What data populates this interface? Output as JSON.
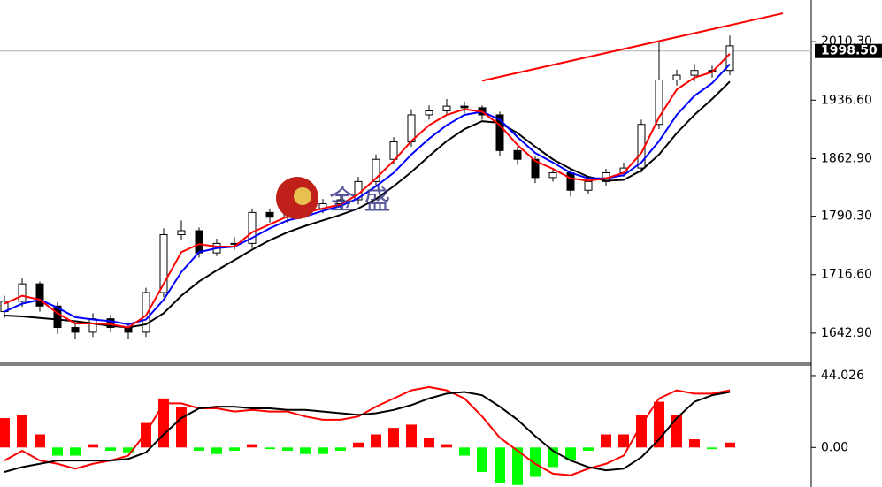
{
  "chart_data": [
    {
      "type": "candlestick",
      "xlim": [
        -0.25,
        45.6
      ],
      "ylim": [
        1604.9,
        2062.8
      ],
      "yticks": [
        {
          "value": 1642.9,
          "label": "1642.90"
        },
        {
          "value": 1716.6,
          "label": "1716.60"
        },
        {
          "value": 1790.3,
          "label": "1790.30"
        },
        {
          "value": 1862.9,
          "label": "1862.90"
        },
        {
          "value": 1936.6,
          "label": "1936.60"
        },
        {
          "value": 2010.3,
          "label": "2010.30"
        }
      ],
      "open": [
        1670,
        1683,
        1705,
        1677,
        1650,
        1644,
        1661,
        1650,
        1644,
        1694,
        1767,
        1772,
        1744,
        1756,
        1756,
        1795,
        1789,
        1795,
        1800,
        1806,
        1811,
        1834,
        1862,
        1884,
        1918,
        1923,
        1929,
        1927,
        1918,
        1873,
        1862,
        1839,
        1845,
        1823,
        1834,
        1845,
        1851,
        1906,
        1962,
        1968,
        1974,
        1974
      ],
      "high": [
        1690,
        1712,
        1708,
        1682,
        1656,
        1668,
        1666,
        1655,
        1700,
        1775,
        1785,
        1776,
        1762,
        1764,
        1800,
        1800,
        1800,
        1806,
        1812,
        1818,
        1840,
        1868,
        1890,
        1925,
        1930,
        1938,
        1935,
        1930,
        1922,
        1878,
        1866,
        1850,
        1850,
        1840,
        1850,
        1858,
        1912,
        2010,
        1975,
        1982,
        1980,
        2018
      ],
      "low": [
        1662,
        1676,
        1670,
        1642,
        1636,
        1638,
        1644,
        1636,
        1638,
        1688,
        1760,
        1738,
        1740,
        1748,
        1750,
        1782,
        1782,
        1788,
        1794,
        1800,
        1805,
        1828,
        1856,
        1878,
        1912,
        1918,
        1920,
        1912,
        1866,
        1855,
        1832,
        1834,
        1815,
        1818,
        1828,
        1840,
        1845,
        1900,
        1955,
        1960,
        1965,
        1968
      ],
      "close": [
        1683,
        1705,
        1677,
        1650,
        1644,
        1661,
        1650,
        1644,
        1694,
        1767,
        1772,
        1744,
        1756,
        1756,
        1795,
        1789,
        1795,
        1800,
        1806,
        1811,
        1834,
        1862,
        1884,
        1918,
        1923,
        1929,
        1927,
        1918,
        1873,
        1862,
        1839,
        1845,
        1823,
        1834,
        1845,
        1851,
        1906,
        1962,
        1968,
        1974,
        1974,
        2005
      ],
      "series": [
        {
          "color": "#000000",
          "values": [
            1665,
            1664,
            1662,
            1660,
            1658,
            1655,
            1652,
            1650,
            1654,
            1668,
            1690,
            1708,
            1722,
            1735,
            1748,
            1760,
            1770,
            1778,
            1785,
            1792,
            1800,
            1812,
            1828,
            1846,
            1866,
            1885,
            1900,
            1910,
            1908,
            1895,
            1878,
            1862,
            1850,
            1840,
            1835,
            1836,
            1848,
            1868,
            1895,
            1918,
            1938,
            1960
          ]
        },
        {
          "color": "#0000ff",
          "values": [
            1670,
            1680,
            1685,
            1675,
            1663,
            1660,
            1658,
            1654,
            1660,
            1685,
            1720,
            1745,
            1750,
            1752,
            1763,
            1775,
            1785,
            1790,
            1797,
            1803,
            1813,
            1828,
            1845,
            1868,
            1888,
            1905,
            1918,
            1922,
            1912,
            1890,
            1870,
            1858,
            1845,
            1838,
            1838,
            1842,
            1858,
            1885,
            1918,
            1942,
            1958,
            1982
          ]
        },
        {
          "color": "#ff0000",
          "values": [
            1680,
            1690,
            1685,
            1668,
            1655,
            1655,
            1654,
            1650,
            1665,
            1705,
            1745,
            1755,
            1752,
            1752,
            1770,
            1780,
            1790,
            1795,
            1800,
            1805,
            1818,
            1838,
            1860,
            1885,
            1905,
            1918,
            1925,
            1922,
            1905,
            1880,
            1860,
            1850,
            1838,
            1835,
            1838,
            1845,
            1870,
            1915,
            1950,
            1965,
            1972,
            1995
          ]
        }
      ],
      "trendline": {
        "x": [
          27,
          44
        ],
        "values": [
          1961,
          2046
        ],
        "color": "#ff0000"
      },
      "last_price": {
        "value": 1998.5,
        "label": "1998.50"
      },
      "watermark": "金 盛"
    },
    {
      "type": "macd",
      "xlim": [
        -0.25,
        45.6
      ],
      "ylim": [
        -24.2,
        50.5
      ],
      "yticks": [
        {
          "value": 0,
          "label": "0.00"
        },
        44.026
      ],
      "histogram": {
        "positive_color": "#ff0000",
        "negative_color": "#00ff00",
        "values": [
          18,
          20,
          8,
          -5,
          -5,
          2,
          -2,
          -3,
          15,
          30,
          25,
          -2,
          -4,
          -2,
          2,
          -1,
          -2,
          -4,
          -4,
          -2,
          3,
          8,
          12,
          14,
          6,
          2,
          -5,
          -15,
          -22,
          -23,
          -18,
          -12,
          -8,
          -2,
          8,
          8,
          20,
          28,
          20,
          5,
          -1,
          3
        ]
      },
      "series": [
        {
          "color": "#ff0000",
          "values": [
            -8,
            -2,
            -8,
            -10,
            -13,
            -10,
            -8,
            -5,
            9,
            27,
            27,
            24,
            24,
            22,
            23,
            22,
            22,
            19,
            17,
            17,
            19,
            25,
            30,
            35,
            37,
            35,
            30,
            19,
            6,
            -2,
            -10,
            -16,
            -17,
            -13,
            -10,
            -5,
            14,
            30,
            35,
            33,
            33,
            35
          ]
        },
        {
          "color": "#000000",
          "values": [
            -15,
            -12,
            -10,
            -8,
            -8,
            -8,
            -8,
            -7,
            -3,
            8,
            18,
            24,
            25,
            25,
            24,
            24,
            23,
            23,
            22,
            21,
            20,
            21,
            23,
            26,
            30,
            33,
            34,
            32,
            25,
            17,
            7,
            -2,
            -8,
            -12,
            -14,
            -13,
            -6,
            5,
            18,
            28,
            32,
            34
          ]
        }
      ]
    }
  ]
}
